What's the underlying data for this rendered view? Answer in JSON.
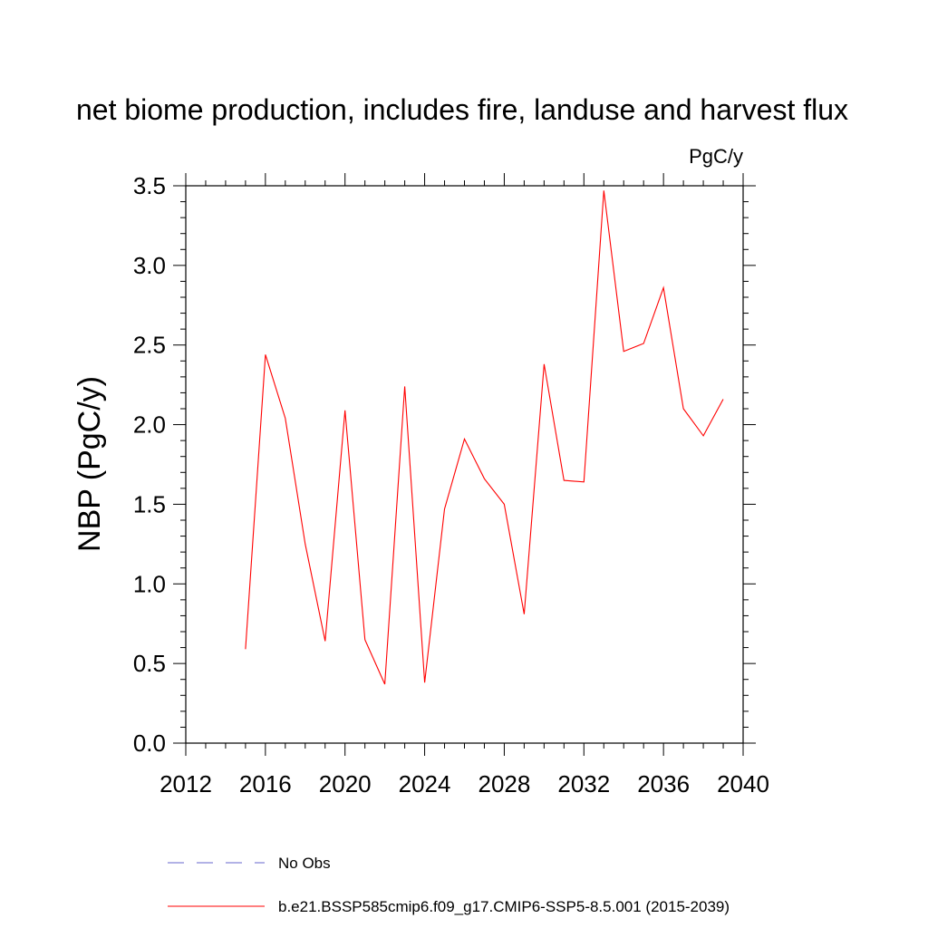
{
  "chart_data": {
    "type": "line",
    "title": "net biome production, includes fire, landuse and harvest flux",
    "units": "PgC/y",
    "ylabel": "NBP  (PgC/y)",
    "xlabel": "",
    "xlim": [
      2012,
      2040
    ],
    "ylim": [
      0.0,
      3.5
    ],
    "x_ticks": [
      2012,
      2016,
      2020,
      2024,
      2028,
      2032,
      2036,
      2040
    ],
    "y_ticks": [
      "0.0",
      "0.5",
      "1.0",
      "1.5",
      "2.0",
      "2.5",
      "3.0",
      "3.5"
    ],
    "grid": false,
    "series": [
      {
        "name": "b.e21.BSSP585cmip6.f09_g17.CMIP6-SSP5-8.5.001 (2015-2039)",
        "color": "#ff0000",
        "style": "solid",
        "x": [
          2015,
          2016,
          2017,
          2018,
          2019,
          2020,
          2021,
          2022,
          2023,
          2024,
          2025,
          2026,
          2027,
          2028,
          2029,
          2030,
          2031,
          2032,
          2033,
          2034,
          2035,
          2036,
          2037,
          2038,
          2039
        ],
        "y": [
          0.59,
          2.44,
          2.04,
          1.25,
          0.64,
          2.09,
          0.65,
          0.37,
          2.24,
          0.38,
          1.47,
          1.91,
          1.66,
          1.5,
          0.81,
          2.38,
          1.65,
          1.64,
          3.47,
          2.46,
          2.51,
          2.86,
          2.1,
          1.93,
          2.16
        ]
      }
    ],
    "legend": [
      {
        "label": "No Obs",
        "color": "#6666cc",
        "style": "dashed"
      },
      {
        "label": "b.e21.BSSP585cmip6.f09_g17.CMIP6-SSP5-8.5.001 (2015-2039)",
        "color": "#ff0000",
        "style": "solid"
      }
    ]
  }
}
